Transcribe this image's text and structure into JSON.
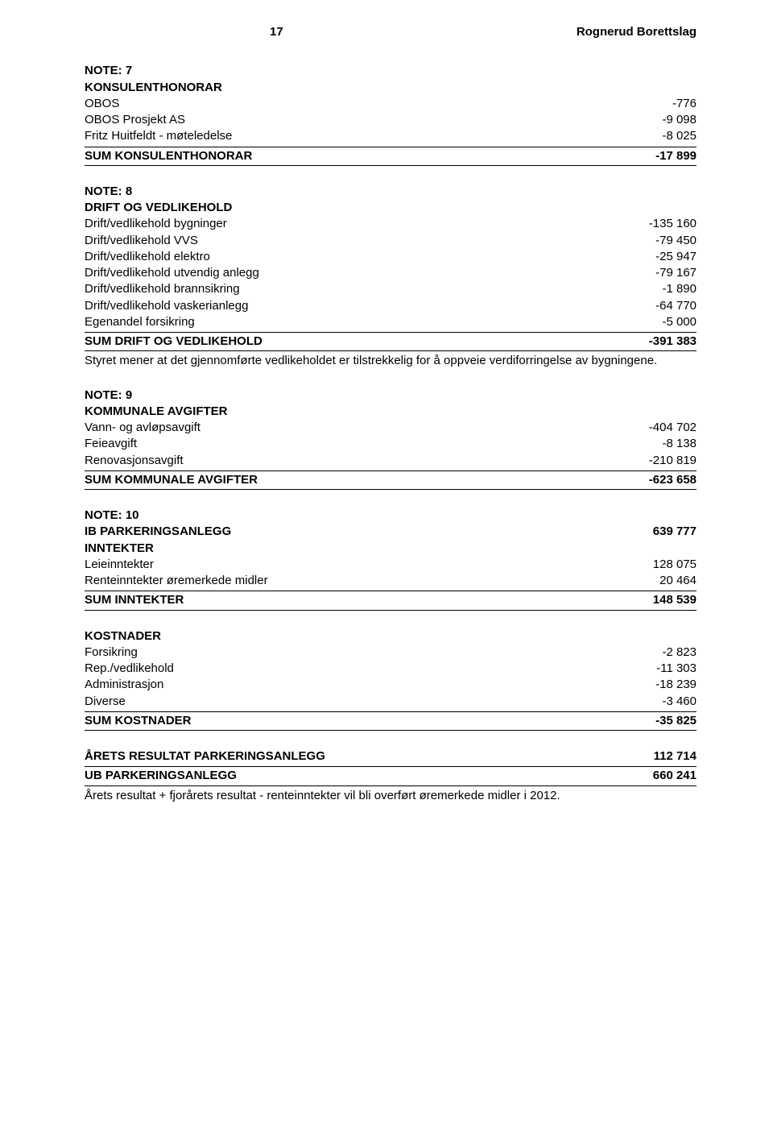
{
  "header": {
    "page_number": "17",
    "org": "Rognerud Borettslag"
  },
  "note7": {
    "title": "NOTE: 7",
    "subtitle": "KONSULENTHONORAR",
    "items": [
      {
        "label": "OBOS",
        "value": "-776"
      },
      {
        "label": "OBOS Prosjekt AS",
        "value": "-9 098"
      },
      {
        "label": "Fritz Huitfeldt - møteledelse",
        "value": "-8 025"
      }
    ],
    "sum": {
      "label": "SUM KONSULENTHONORAR",
      "value": "-17 899"
    }
  },
  "note8": {
    "title": "NOTE: 8",
    "subtitle": "DRIFT OG VEDLIKEHOLD",
    "items": [
      {
        "label": "Drift/vedlikehold bygninger",
        "value": "-135 160"
      },
      {
        "label": "Drift/vedlikehold VVS",
        "value": "-79 450"
      },
      {
        "label": "Drift/vedlikehold elektro",
        "value": "-25 947"
      },
      {
        "label": "Drift/vedlikehold utvendig anlegg",
        "value": "-79 167"
      },
      {
        "label": "Drift/vedlikehold brannsikring",
        "value": "-1 890"
      },
      {
        "label": "Drift/vedlikehold vaskerianlegg",
        "value": "-64 770"
      },
      {
        "label": "Egenandel forsikring",
        "value": "-5 000"
      }
    ],
    "sum": {
      "label": "SUM DRIFT OG VEDLIKEHOLD",
      "value": "-391 383"
    },
    "body": "Styret mener at det gjennomførte vedlikeholdet er tilstrekkelig for å oppveie verdiforringelse av bygningene."
  },
  "note9": {
    "title": "NOTE: 9",
    "subtitle": "KOMMUNALE AVGIFTER",
    "items": [
      {
        "label": "Vann- og avløpsavgift",
        "value": "-404 702"
      },
      {
        "label": "Feieavgift",
        "value": "-8 138"
      },
      {
        "label": "Renovasjonsavgift",
        "value": "-210 819"
      }
    ],
    "sum": {
      "label": "SUM KOMMUNALE AVGIFTER",
      "value": "-623 658"
    }
  },
  "note10": {
    "title": "NOTE: 10",
    "ib": {
      "label": "IB PARKERINGSANLEGG",
      "value": "639 777"
    },
    "inntekter_title": "INNTEKTER",
    "inntekter_items": [
      {
        "label": "Leieinntekter",
        "value": "128 075"
      },
      {
        "label": "Renteinntekter øremerkede midler",
        "value": "20 464"
      }
    ],
    "inntekter_sum": {
      "label": "SUM INNTEKTER",
      "value": "148 539"
    },
    "kostnader_title": "KOSTNADER",
    "kostnader_items": [
      {
        "label": "Forsikring",
        "value": "-2 823"
      },
      {
        "label": "Rep./vedlikehold",
        "value": "-11 303"
      },
      {
        "label": "Administrasjon",
        "value": "-18 239"
      },
      {
        "label": "Diverse",
        "value": "-3 460"
      }
    ],
    "kostnader_sum": {
      "label": "SUM KOSTNADER",
      "value": "-35 825"
    },
    "resultat": {
      "label": "ÅRETS RESULTAT PARKERINGSANLEGG",
      "value": "112 714"
    },
    "ub": {
      "label": "UB PARKERINGSANLEGG",
      "value": "660 241"
    },
    "body": "Årets resultat + fjorårets resultat - renteinntekter vil bli overført øremerkede midler i 2012."
  }
}
